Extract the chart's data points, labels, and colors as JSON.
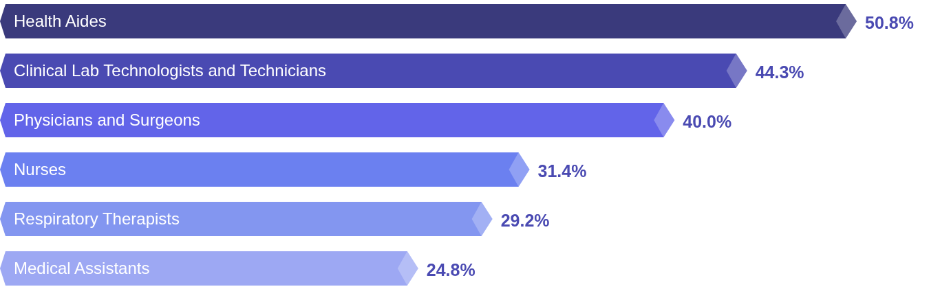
{
  "chart_data": {
    "type": "bar",
    "orientation": "horizontal",
    "categories": [
      "Health Aides",
      "Clinical Lab Technologists and Technicians",
      "Physicians and Surgeons",
      "Nurses",
      "Respiratory Therapists",
      "Medical Assistants"
    ],
    "values": [
      50.8,
      44.3,
      40.0,
      31.4,
      29.2,
      24.8
    ],
    "value_labels": [
      "50.8%",
      "44.3%",
      "40.0%",
      "31.4%",
      "29.2%",
      "24.8%"
    ],
    "colors": [
      "#3a3a7c",
      "#4a4ab2",
      "#6264e9",
      "#6b80f0",
      "#8396f0",
      "#9da8f3"
    ]
  }
}
